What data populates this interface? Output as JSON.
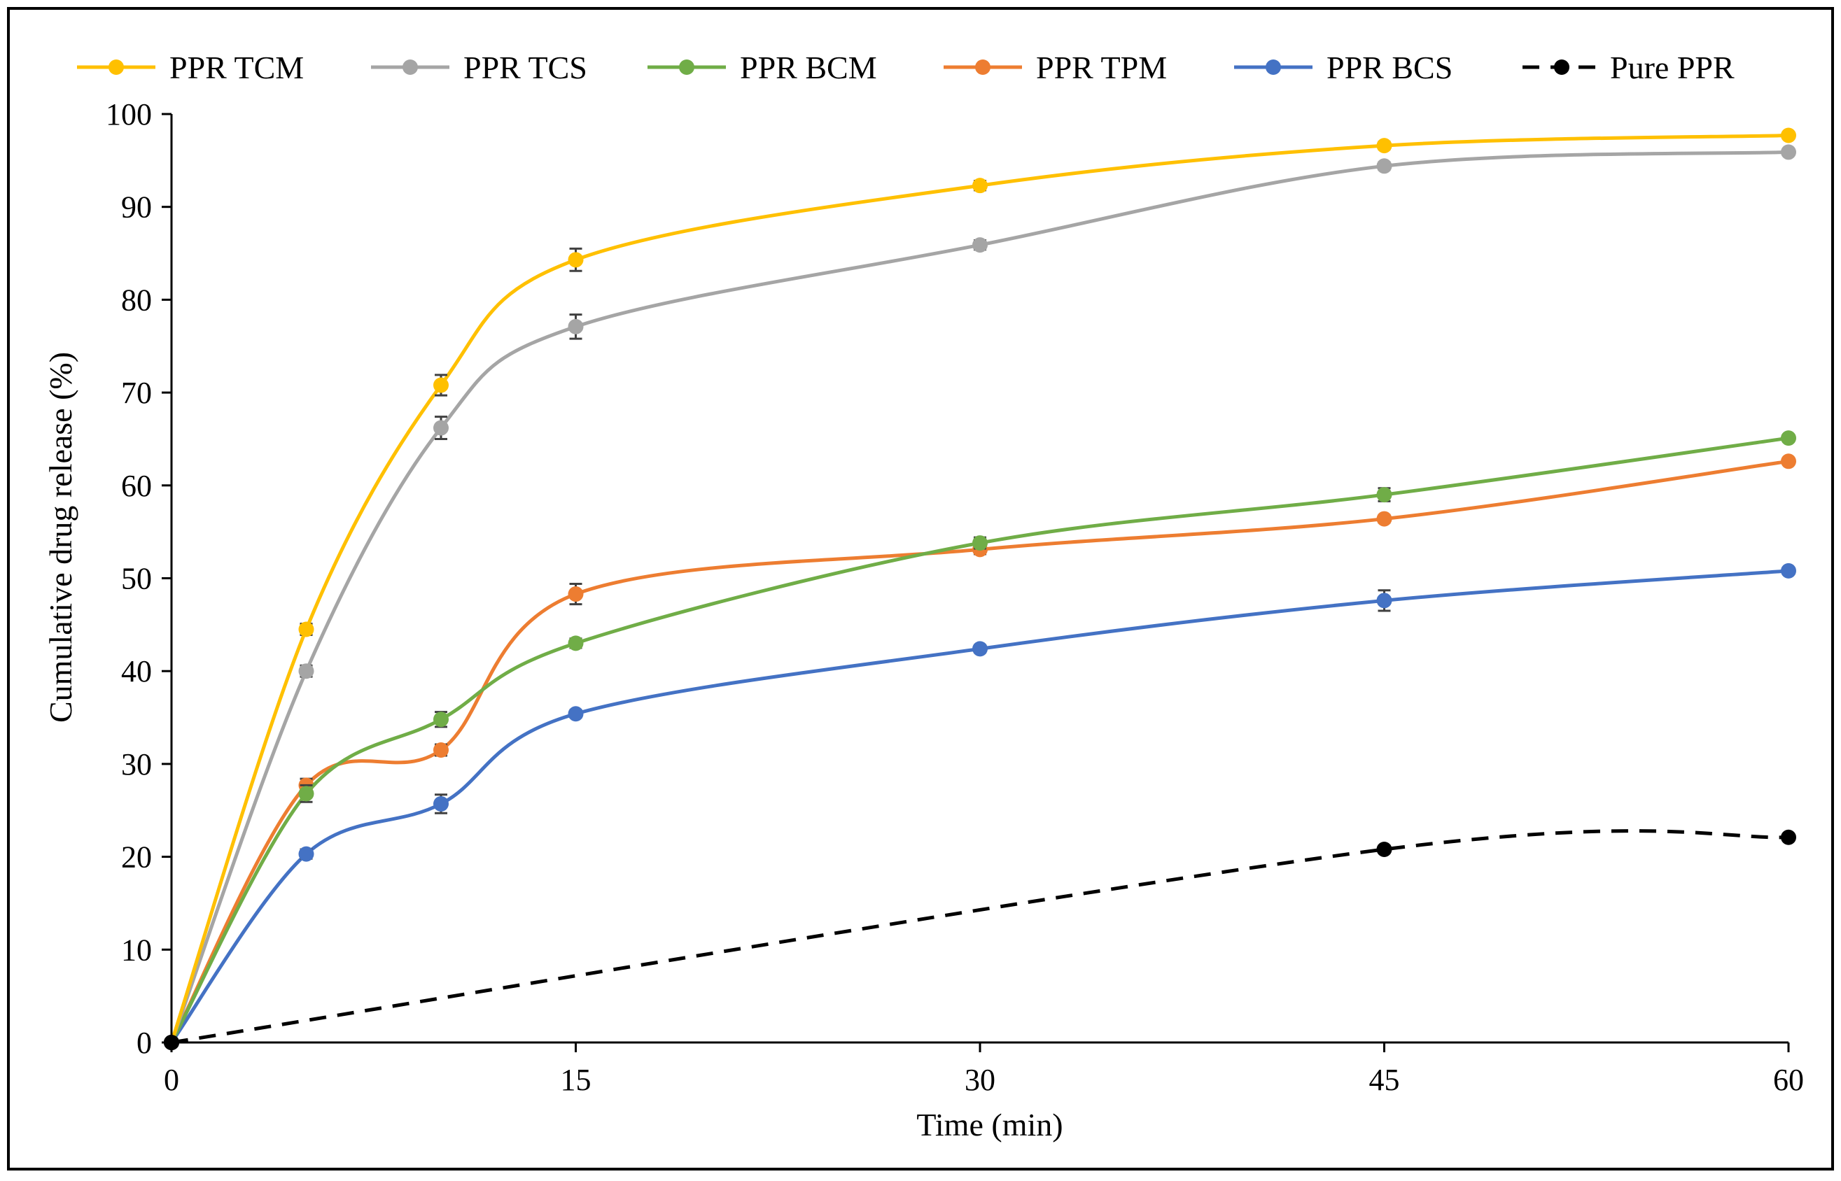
{
  "chart_data": {
    "type": "line",
    "xlabel": "Time  (min)",
    "ylabel": "Cumulative  drug release  (%)",
    "xlim": [
      0,
      60
    ],
    "ylim": [
      0,
      100
    ],
    "xticks": [
      0,
      15,
      30,
      45,
      60
    ],
    "yticks": [
      0,
      10,
      20,
      30,
      40,
      50,
      60,
      70,
      80,
      90,
      100
    ],
    "legend_position": "top",
    "x": [
      0,
      5,
      10,
      15,
      30,
      45,
      60
    ],
    "series": [
      {
        "name": "PPR TCM",
        "color": "#FFC000",
        "dashed": false,
        "x": [
          0,
          5,
          10,
          15,
          30,
          45,
          60
        ],
        "values": [
          0,
          44.5,
          70.8,
          84.3,
          92.3,
          96.6,
          97.7
        ],
        "errors": [
          0,
          0.6,
          1.1,
          1.2,
          0.5,
          0.4,
          0.3
        ]
      },
      {
        "name": "PPR TCS",
        "color": "#A5A5A5",
        "dashed": false,
        "x": [
          0,
          5,
          10,
          15,
          30,
          45,
          60
        ],
        "values": [
          0,
          40,
          66.2,
          77.1,
          85.9,
          94.4,
          95.9
        ],
        "errors": [
          0,
          0.6,
          1.2,
          1.3,
          0.5,
          0.4,
          0.3
        ]
      },
      {
        "name": "PPR BCM",
        "color": "#70AD47",
        "dashed": false,
        "x": [
          0,
          5,
          10,
          15,
          30,
          45,
          60
        ],
        "values": [
          0,
          26.8,
          34.8,
          43,
          53.8,
          59,
          65.1
        ],
        "errors": [
          0,
          0.9,
          0.8,
          0.5,
          0.6,
          0.7,
          0.3
        ]
      },
      {
        "name": "PPR TPM",
        "color": "#ED7D31",
        "dashed": false,
        "x": [
          0,
          5,
          10,
          15,
          30,
          45,
          60
        ],
        "values": [
          0,
          27.7,
          31.5,
          48.3,
          53.1,
          56.4,
          62.6
        ],
        "errors": [
          0,
          0.7,
          0.6,
          1.1,
          0.5,
          0.4,
          0.3
        ]
      },
      {
        "name": "PPR BCS",
        "color": "#4472C4",
        "dashed": false,
        "x": [
          0,
          5,
          10,
          15,
          30,
          45,
          60
        ],
        "values": [
          0,
          20.3,
          25.7,
          35.4,
          42.4,
          47.6,
          50.8
        ],
        "errors": [
          0,
          0.5,
          1.0,
          0.4,
          0.4,
          1.1,
          0.3
        ]
      },
      {
        "name": "Pure PPR",
        "color": "#000000",
        "dashed": true,
        "x": [
          0,
          45,
          60
        ],
        "values": [
          0,
          20.8,
          22.1
        ],
        "errors": [
          0,
          0.4,
          0.3
        ]
      }
    ]
  }
}
